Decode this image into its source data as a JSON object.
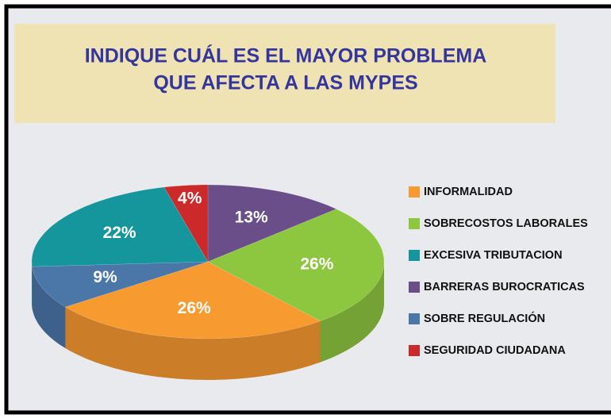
{
  "chart_data": {
    "type": "pie",
    "title": [
      "INDIQUE CUÁL ES EL MAYOR PROBLEMA",
      "QUE AFECTA A LAS MYPES"
    ],
    "categories": [
      "INFORMALIDAD",
      "SOBRECOSTOS LABORALES",
      "EXCESIVA TRIBUTACION",
      "BARRERAS BUROCRATICAS",
      "SOBRE REGULACIÓN",
      "SEGURIDAD CIUDADANA"
    ],
    "values": [
      26,
      26,
      22,
      13,
      9,
      4
    ],
    "value_labels": [
      "26%",
      "26%",
      "22%",
      "13%",
      "9%",
      "4%"
    ],
    "colors": [
      "#f79a30",
      "#8dc63f",
      "#14969c",
      "#6a4e8a",
      "#4a76a8",
      "#cc2a2a"
    ],
    "legend": "right"
  }
}
